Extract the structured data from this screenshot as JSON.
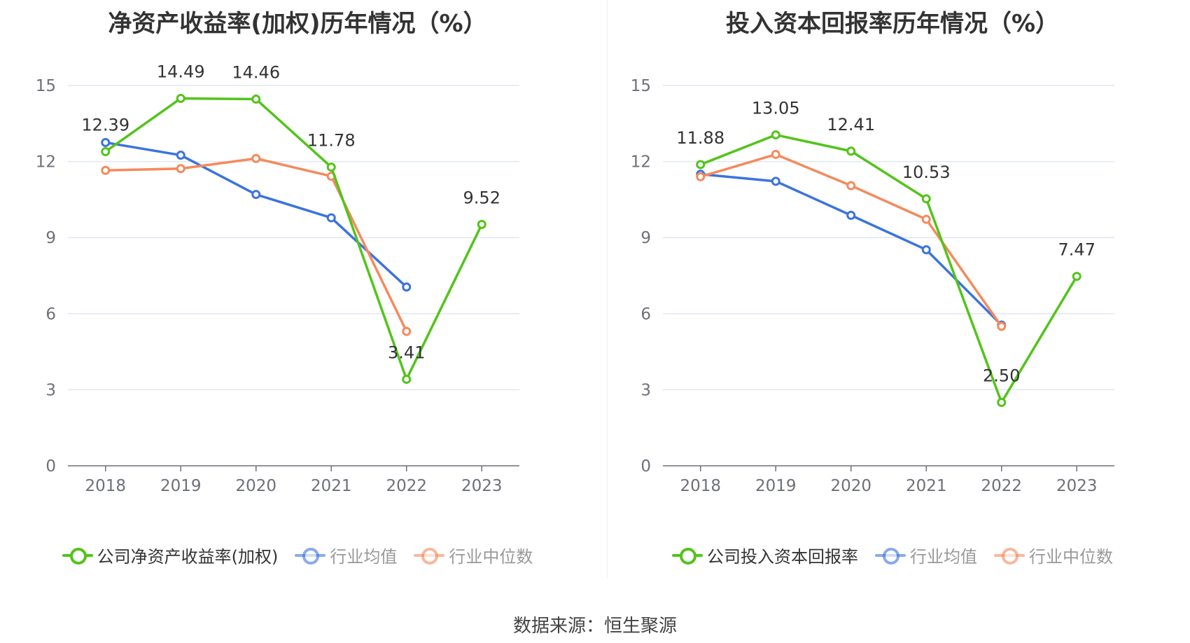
{
  "source": "数据来源：恒生聚源",
  "chart_data": [
    {
      "type": "line",
      "title": "净资产收益率(加权)历年情况（%）",
      "categories": [
        "2018",
        "2019",
        "2020",
        "2021",
        "2022",
        "2023"
      ],
      "ylim": [
        0,
        15
      ],
      "yticks": [
        "0",
        "3",
        "6",
        "9",
        "12",
        "15"
      ],
      "grid": true,
      "legend_position": "bottom",
      "series": [
        {
          "name": "公司净资产收益率(加权)",
          "color": "#52c41a",
          "values": [
            12.39,
            14.49,
            14.46,
            11.78,
            3.41,
            9.52
          ],
          "labels": [
            "12.39",
            "14.49",
            "14.46",
            "11.78",
            "3.41",
            "9.52"
          ]
        },
        {
          "name": "行业均值",
          "color": "#3b73e0",
          "values": [
            12.75,
            12.25,
            10.7,
            9.78,
            7.05,
            null
          ]
        },
        {
          "name": "行业中位数",
          "color": "#f58a5c",
          "values": [
            11.65,
            11.72,
            12.12,
            11.42,
            5.3,
            null
          ]
        }
      ]
    },
    {
      "type": "line",
      "title": "投入资本回报率历年情况（%）",
      "categories": [
        "2018",
        "2019",
        "2020",
        "2021",
        "2022",
        "2023"
      ],
      "ylim": [
        0,
        15
      ],
      "yticks": [
        "0",
        "3",
        "6",
        "9",
        "12",
        "15"
      ],
      "grid": true,
      "legend_position": "bottom",
      "series": [
        {
          "name": "公司投入资本回报率",
          "color": "#52c41a",
          "values": [
            11.88,
            13.05,
            12.41,
            10.53,
            2.5,
            7.47
          ],
          "labels": [
            "11.88",
            "13.05",
            "12.41",
            "10.53",
            "2.50",
            "7.47"
          ]
        },
        {
          "name": "行业均值",
          "color": "#3b73e0",
          "values": [
            11.5,
            11.22,
            9.88,
            8.52,
            5.55,
            null
          ]
        },
        {
          "name": "行业中位数",
          "color": "#f58a5c",
          "values": [
            11.4,
            12.28,
            11.05,
            9.72,
            5.5,
            null
          ]
        }
      ]
    }
  ]
}
